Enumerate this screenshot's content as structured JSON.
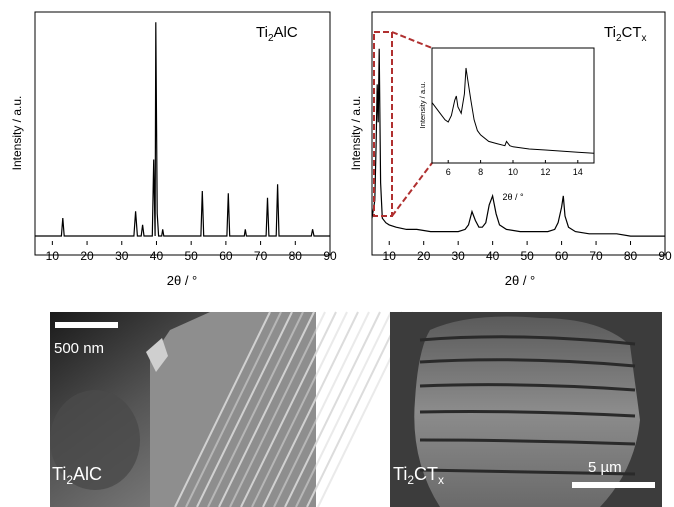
{
  "chart_data": [
    {
      "type": "line",
      "panel": "a",
      "label_prefix": "Ti",
      "label_sub": "2",
      "label_suffix": "AlC",
      "xlabel": "2θ / °",
      "ylabel": "Intensity / a.u.",
      "xlim": [
        5,
        90
      ],
      "xticks": [
        10,
        20,
        30,
        40,
        50,
        60,
        70,
        80,
        90
      ],
      "ylim": [
        0,
        100
      ],
      "grid": false,
      "series": [
        {
          "x": [
            5,
            12.6,
            13.0,
            13.4,
            33.5,
            34.0,
            34.5,
            35.6,
            36.0,
            36.4,
            38.8,
            39.2,
            39.6,
            39.8,
            40.2,
            40.6,
            41.5,
            41.8,
            42.1,
            52.8,
            53.2,
            53.6,
            60.3,
            60.7,
            61.1,
            65.3,
            65.6,
            65.9,
            71.6,
            72.0,
            72.4,
            74.5,
            74.9,
            75.3,
            84.6,
            85.0,
            85.4,
            90
          ],
          "y": [
            4,
            4,
            12,
            4,
            4,
            15,
            4,
            4,
            9,
            4,
            4,
            38,
            4,
            99,
            14,
            4,
            4,
            7,
            4,
            4,
            24,
            4,
            4,
            23,
            4,
            4,
            7,
            4,
            4,
            21,
            4,
            4,
            27,
            4,
            4,
            7,
            4,
            4
          ]
        }
      ]
    },
    {
      "type": "line",
      "panel": "b",
      "label_prefix": "Ti",
      "label_sub": "2",
      "label_mid": "CT",
      "label_sub2": "x",
      "xlabel": "2θ / °",
      "ylabel": "Intensity / a.u.",
      "xlim": [
        5,
        90
      ],
      "xticks": [
        10,
        20,
        30,
        40,
        50,
        60,
        70,
        80,
        90
      ],
      "ylim": [
        0,
        100
      ],
      "grid": false,
      "series": [
        {
          "x": [
            5,
            5.8,
            6.2,
            6.5,
            6.8,
            7.1,
            7.5,
            8.0,
            9.0,
            10,
            12,
            15,
            18,
            22,
            26,
            30,
            32,
            33,
            34,
            35,
            36,
            37,
            38,
            39,
            40,
            41,
            42,
            44,
            48,
            52,
            56,
            58,
            59,
            60,
            60.5,
            61,
            62,
            64,
            68,
            72,
            76,
            80,
            85,
            90
          ],
          "y": [
            12,
            20,
            45,
            72,
            55,
            88,
            28,
            12,
            10,
            9,
            8,
            7,
            7,
            6,
            6,
            6,
            7,
            9,
            15,
            11,
            8,
            8,
            10,
            18,
            22,
            14,
            9,
            7,
            6,
            6,
            6,
            7,
            10,
            17,
            22,
            13,
            8,
            6,
            5,
            5,
            5,
            4,
            4,
            4
          ]
        }
      ]
    },
    {
      "type": "line",
      "panel": "b-inset",
      "xlabel": "2θ / °",
      "ylabel": "Intensity / a.u.",
      "xlim": [
        5,
        15
      ],
      "xticks": [
        6,
        8,
        10,
        12,
        14
      ],
      "ylim": [
        0,
        100
      ],
      "series": [
        {
          "x": [
            5.0,
            5.5,
            5.8,
            6.0,
            6.2,
            6.4,
            6.5,
            6.6,
            6.8,
            7.0,
            7.1,
            7.2,
            7.4,
            7.6,
            7.8,
            8.0,
            8.5,
            9.0,
            9.5,
            9.6,
            9.8,
            10.0,
            11.0,
            12.0,
            13.0,
            14.0,
            15.0
          ],
          "y": [
            56,
            46,
            40,
            38,
            44,
            58,
            62,
            52,
            46,
            64,
            88,
            78,
            58,
            40,
            30,
            26,
            20,
            18,
            16,
            20,
            16,
            15,
            13,
            12,
            11,
            10,
            9
          ]
        }
      ]
    }
  ],
  "sem": {
    "left": {
      "label_prefix": "Ti",
      "label_sub": "2",
      "label_suffix": "AlC",
      "scale": "500 nm"
    },
    "right": {
      "label_prefix": "Ti",
      "label_sub": "2",
      "label_mid": "CT",
      "label_sub2": "x",
      "scale": "5 µm"
    }
  },
  "colors": {
    "line": "#000000",
    "zoom_box": "#b03030",
    "sem_text": "#ffffff"
  }
}
